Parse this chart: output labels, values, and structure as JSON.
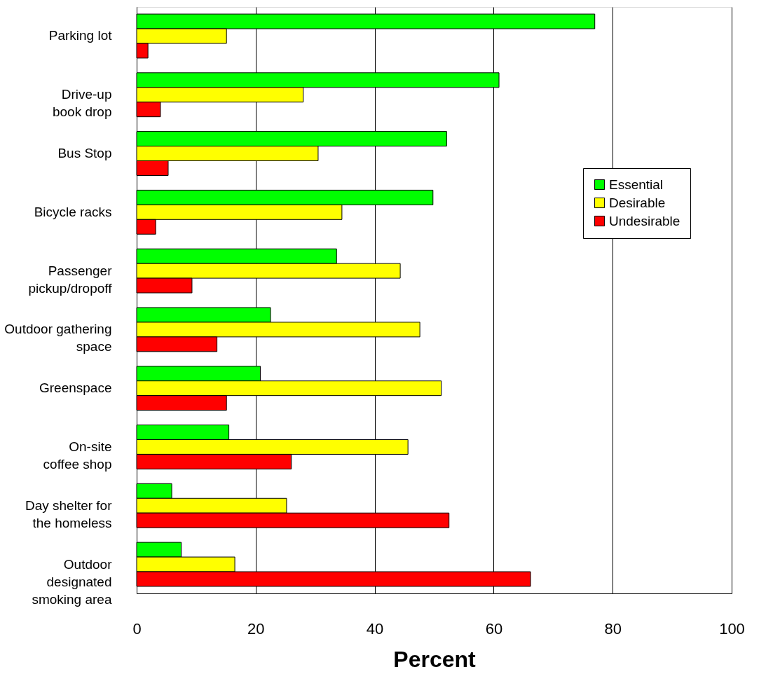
{
  "chart_data": {
    "type": "bar",
    "orientation": "horizontal",
    "xlabel": "Percent",
    "categories": [
      "Parking lot",
      "Drive-up\nbook drop",
      "Bus Stop",
      "Bicycle racks",
      "Passenger\npickup/dropoff",
      "Outdoor gathering\nspace",
      "Greenspace",
      "On-site\ncoffee shop",
      "Day shelter for\nthe homeless",
      "Outdoor\ndesignated\nsmoking area"
    ],
    "series": [
      {
        "name": "Essential",
        "color": "#00ff00",
        "values": [
          77.0,
          60.9,
          52.1,
          49.8,
          33.6,
          22.5,
          20.8,
          15.5,
          5.9,
          7.5
        ]
      },
      {
        "name": "Desirable",
        "color": "#ffff00",
        "values": [
          15.1,
          28.0,
          30.5,
          34.5,
          44.3,
          47.6,
          51.2,
          45.6,
          25.2,
          16.5
        ]
      },
      {
        "name": "Undesirable",
        "color": "#ff0000",
        "values": [
          1.9,
          4.0,
          5.3,
          3.2,
          9.3,
          13.5,
          15.1,
          26.0,
          52.5,
          66.2
        ]
      }
    ],
    "xlim": [
      0,
      100
    ],
    "xticks": [
      0,
      20,
      40,
      60,
      80,
      100
    ],
    "grid": "x",
    "legend": "right"
  }
}
